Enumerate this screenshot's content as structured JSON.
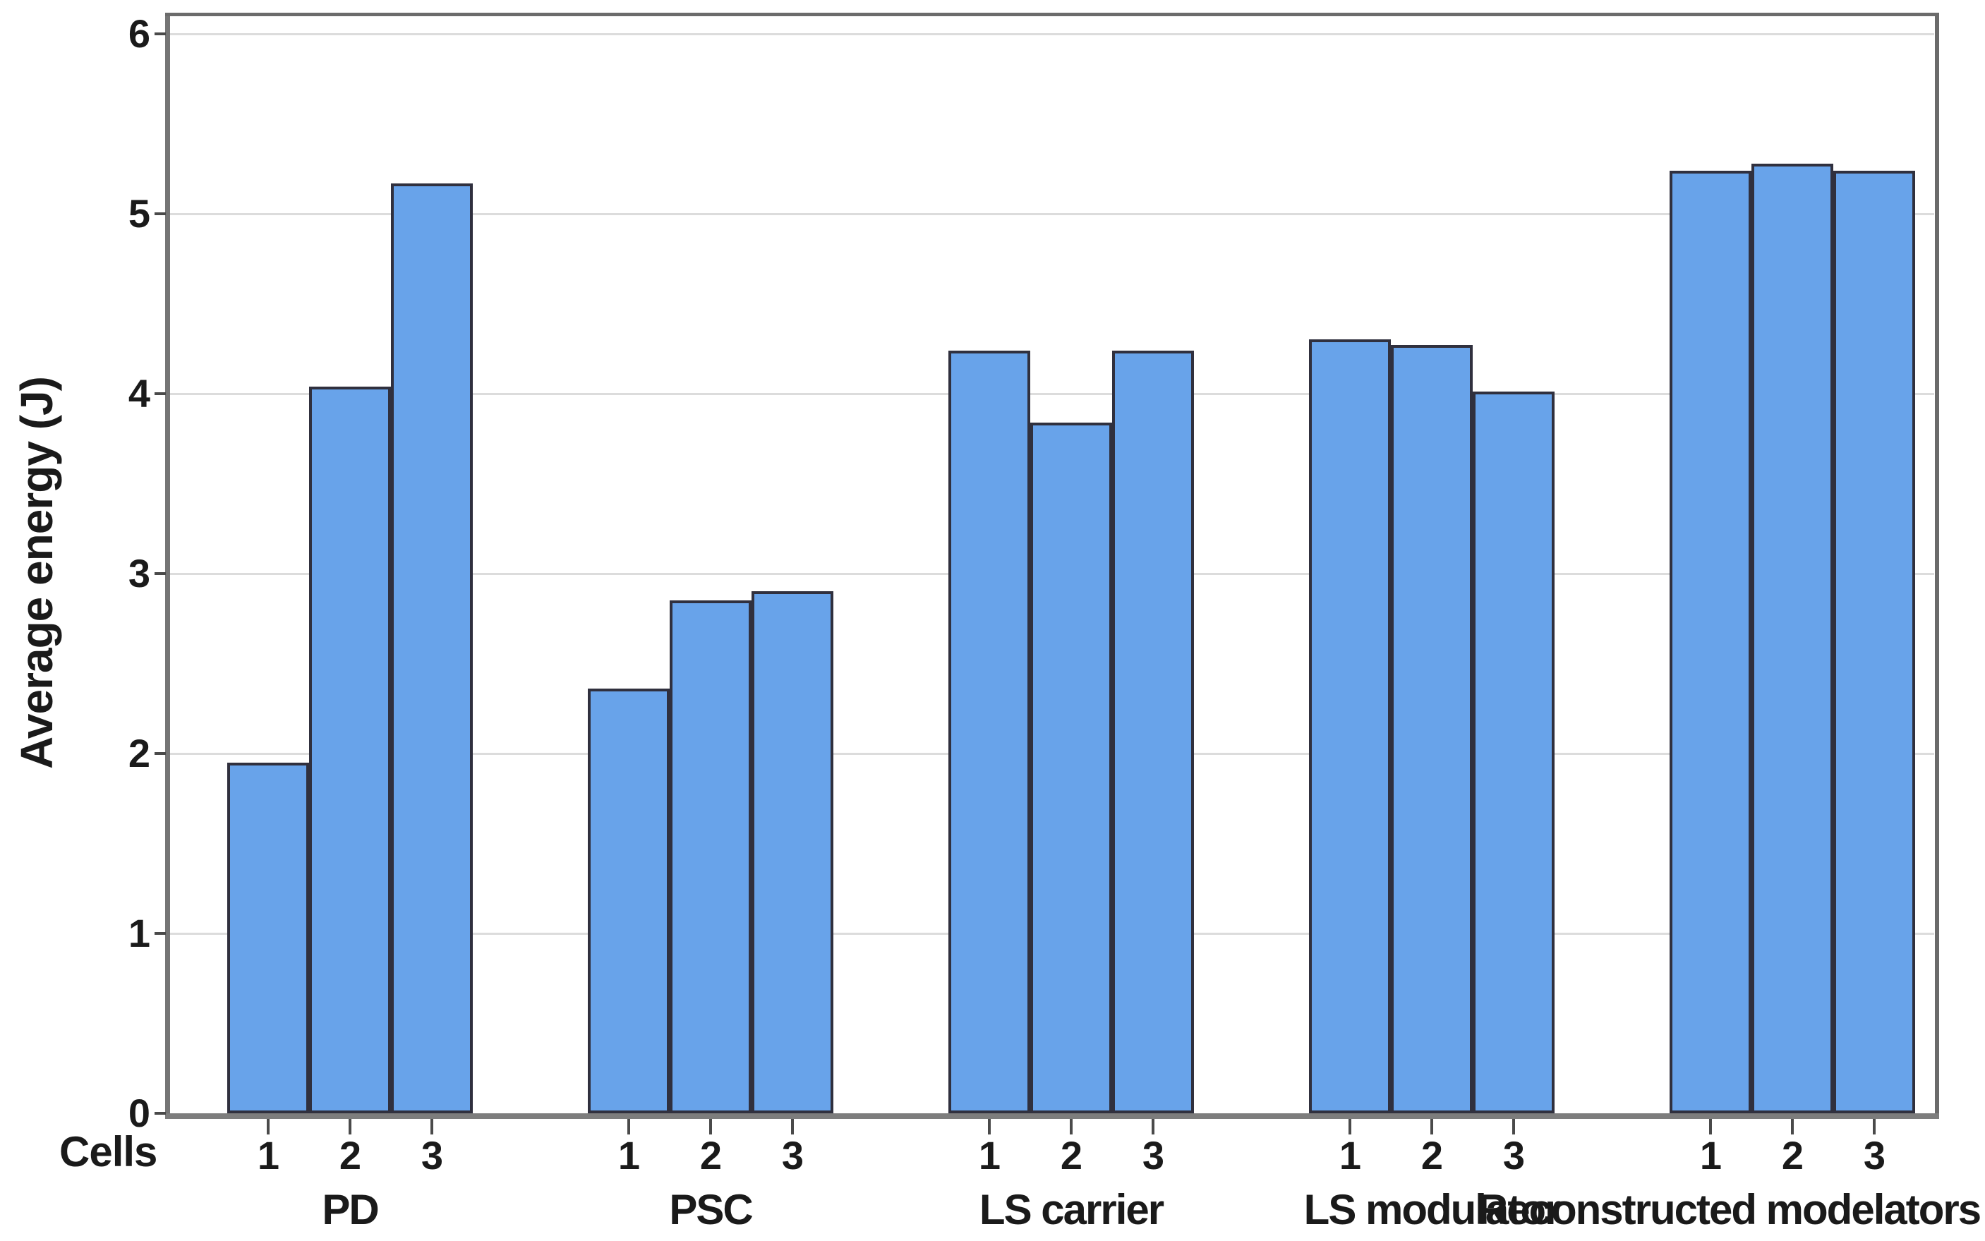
{
  "chart_data": {
    "type": "bar",
    "title": "",
    "ylabel": "Average energy (J)",
    "xlabel": "Cells",
    "ylim": [
      0,
      6
    ],
    "yticks": [
      "0",
      "1",
      "2",
      "3",
      "4",
      "5",
      "6"
    ],
    "grid": "horizontal",
    "legend": "none",
    "cell_labels": [
      "1",
      "2",
      "3"
    ],
    "categories": [
      "PD",
      "PSC",
      "LS carrier",
      "LS modulator",
      "Reconstructed modelators"
    ],
    "groups": [
      {
        "label": "PD",
        "values": [
          1.95,
          4.04,
          5.17
        ]
      },
      {
        "label": "PSC",
        "values": [
          2.36,
          2.85,
          2.9
        ]
      },
      {
        "label": "LS carrier",
        "values": [
          4.24,
          3.84,
          4.24
        ]
      },
      {
        "label": "LS modulator",
        "values": [
          4.3,
          4.27,
          4.01
        ]
      },
      {
        "label": "Reconstructed modelators",
        "values": [
          5.24,
          5.28,
          5.24
        ]
      }
    ],
    "colors": {
      "bar_fill": "#68a3ea",
      "bar_stroke": "#30303e",
      "gridline": "#dcdcdc",
      "axis_frame": "#6b6b6b",
      "axis_baseline": "#7d7d7d",
      "tick": "#4a4a4a",
      "text": "#1a1a1a"
    }
  }
}
